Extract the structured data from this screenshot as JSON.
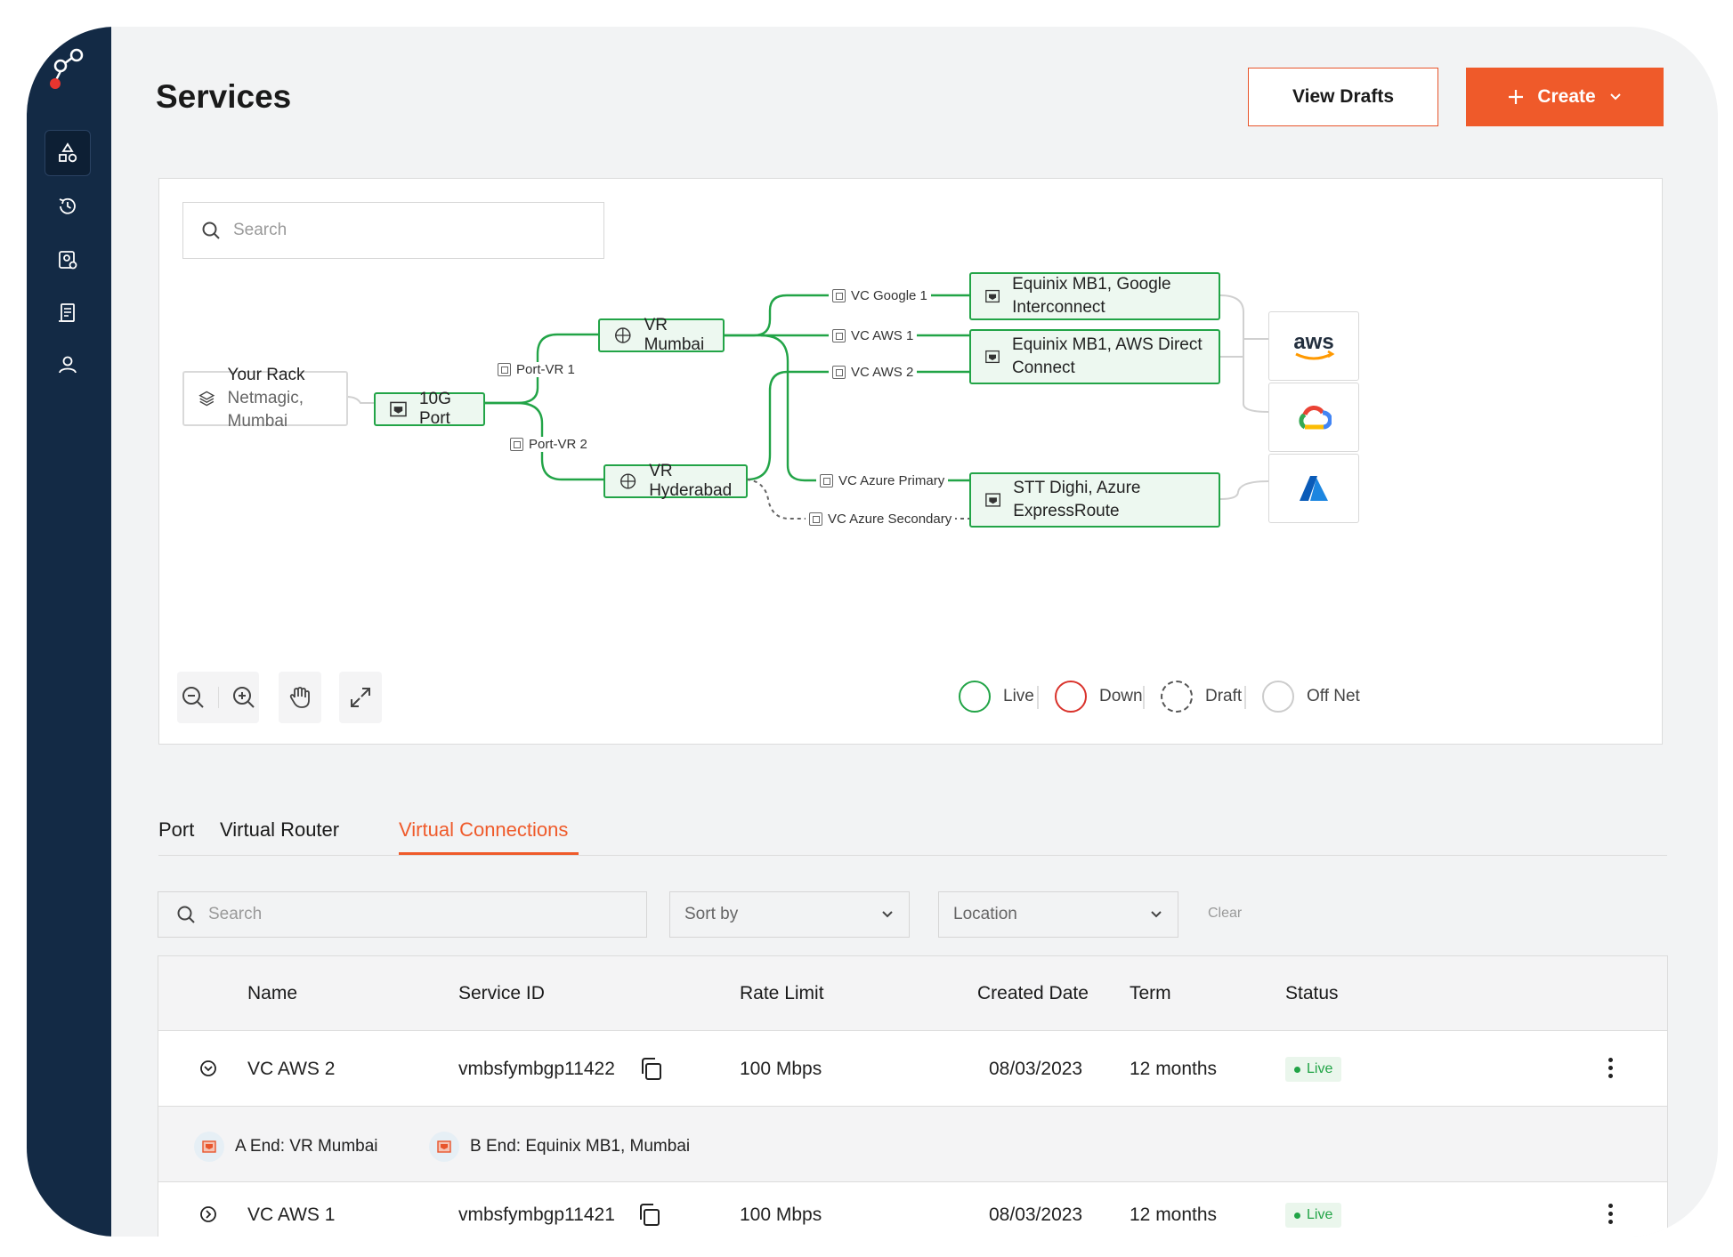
{
  "page": {
    "title": "Services"
  },
  "header": {
    "drafts_label": "View Drafts",
    "create_label": "Create",
    "accent": "#ef5a2a"
  },
  "sidebar": {
    "items": [
      "services-icon",
      "history-icon",
      "billing-icon",
      "docs-icon",
      "user-icon"
    ]
  },
  "diagram": {
    "search_placeholder": "Search",
    "rack": {
      "title": "Your Rack",
      "subtitle": "Netmagic, Mumbai"
    },
    "port": "10G Port",
    "routers": [
      "VR Mumbai",
      "VR Hyderabad"
    ],
    "port_links": [
      "Port-VR 1",
      "Port-VR 2"
    ],
    "connections": [
      "VC Google 1",
      "VC AWS 1",
      "VC AWS 2",
      "VC Azure Primary",
      "VC Azure Secondary"
    ],
    "endpoints": [
      "Equinix MB1, Google Interconnect",
      "Equinix MB1, AWS Direct Connect",
      "STT Dighi, Azure ExpressRoute"
    ],
    "clouds": [
      "aws",
      "google-cloud",
      "azure"
    ],
    "legend": [
      {
        "label": "Live",
        "color": "#22a447",
        "style": "solid"
      },
      {
        "label": "Down",
        "color": "#d9322b",
        "style": "solid"
      },
      {
        "label": "Draft",
        "color": "#555555",
        "style": "dashed"
      },
      {
        "label": "Off Net",
        "color": "#cccccc",
        "style": "solid"
      }
    ],
    "live_color": "#22a447"
  },
  "tabs": [
    {
      "label": "Port",
      "active": false
    },
    {
      "label": "Virtual Router",
      "active": false
    },
    {
      "label": "Virtual Connections",
      "active": true
    }
  ],
  "filters": {
    "search_placeholder": "Search",
    "sort_label": "Sort by",
    "location_label": "Location",
    "clear_label": "Clear"
  },
  "table": {
    "columns": [
      "Name",
      "Service ID",
      "Rate Limit",
      "Created Date",
      "Term",
      "Status"
    ],
    "rows": [
      {
        "name": "VC AWS 2",
        "service_id": "vmbsfymbgp11422",
        "rate_limit": "100 Mbps",
        "created": "08/03/2023",
        "term": "12 months",
        "status": "Live",
        "expanded": true,
        "a_end": "A End: VR Mumbai",
        "b_end": "B End: Equinix MB1, Mumbai"
      },
      {
        "name": "VC AWS 1",
        "service_id": "vmbsfymbgp11421",
        "rate_limit": "100 Mbps",
        "created": "08/03/2023",
        "term": "12 months",
        "status": "Live",
        "expanded": false
      }
    ]
  }
}
